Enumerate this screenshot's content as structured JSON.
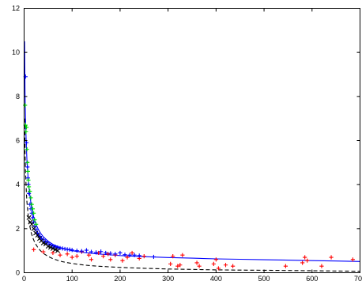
{
  "chart_data": {
    "type": "scatter",
    "title": "",
    "xlabel": "",
    "ylabel": "",
    "xlim": [
      0,
      700
    ],
    "ylim": [
      0,
      12
    ],
    "xticks": [
      0,
      100,
      200,
      300,
      400,
      500,
      600,
      700
    ],
    "yticks": [
      0,
      2,
      4,
      6,
      8,
      10,
      12
    ],
    "xtick_labels": [
      "0",
      "100",
      "200",
      "300",
      "400",
      "500",
      "600",
      "700"
    ],
    "ytick_labels": [
      "0",
      "2",
      "4",
      "6",
      "8",
      "10",
      "12"
    ],
    "grid": false,
    "legend": "none",
    "series": [
      {
        "marker": "+",
        "color": "#ff0000",
        "points": [
          [
            20,
            1.05
          ],
          [
            40,
            0.95
          ],
          [
            60,
            0.9
          ],
          [
            75,
            0.8
          ],
          [
            90,
            0.85
          ],
          [
            100,
            0.7
          ],
          [
            110,
            0.75
          ],
          [
            120,
            0.95
          ],
          [
            135,
            0.8
          ],
          [
            140,
            0.6
          ],
          [
            155,
            0.9
          ],
          [
            165,
            0.75
          ],
          [
            175,
            0.85
          ],
          [
            180,
            0.6
          ],
          [
            190,
            0.8
          ],
          [
            205,
            0.55
          ],
          [
            215,
            0.7
          ],
          [
            225,
            0.9
          ],
          [
            240,
            0.65
          ],
          [
            250,
            0.75
          ],
          [
            305,
            0.4
          ],
          [
            310,
            0.75
          ],
          [
            320,
            0.3
          ],
          [
            325,
            0.35
          ],
          [
            330,
            0.8
          ],
          [
            360,
            0.45
          ],
          [
            365,
            0.3
          ],
          [
            395,
            0.4
          ],
          [
            400,
            0.6
          ],
          [
            405,
            0.2
          ],
          [
            420,
            0.35
          ],
          [
            435,
            0.3
          ],
          [
            545,
            0.3
          ],
          [
            580,
            0.45
          ],
          [
            585,
            0.7
          ],
          [
            590,
            0.55
          ],
          [
            620,
            0.3
          ],
          [
            640,
            0.7
          ],
          [
            685,
            0.6
          ]
        ]
      },
      {
        "marker": "+",
        "color": "#0000ff",
        "points": [
          [
            3,
            8.9
          ],
          [
            5,
            5.9
          ],
          [
            6,
            5.0
          ],
          [
            7,
            4.8
          ],
          [
            8,
            4.3
          ],
          [
            9,
            4.0
          ],
          [
            10,
            3.6
          ],
          [
            12,
            3.1
          ],
          [
            14,
            2.9
          ],
          [
            16,
            2.7
          ],
          [
            18,
            2.5
          ],
          [
            20,
            2.3
          ],
          [
            22,
            2.1
          ],
          [
            25,
            1.95
          ],
          [
            28,
            1.8
          ],
          [
            30,
            1.7
          ],
          [
            33,
            1.65
          ],
          [
            36,
            1.55
          ],
          [
            40,
            1.5
          ],
          [
            44,
            1.42
          ],
          [
            48,
            1.38
          ],
          [
            52,
            1.3
          ],
          [
            56,
            1.25
          ],
          [
            60,
            1.22
          ],
          [
            65,
            1.18
          ],
          [
            70,
            1.15
          ],
          [
            75,
            1.12
          ],
          [
            80,
            1.1
          ],
          [
            85,
            1.08
          ],
          [
            90,
            1.06
          ],
          [
            95,
            1.05
          ],
          [
            100,
            1.03
          ],
          [
            110,
            1.0
          ],
          [
            120,
            0.98
          ],
          [
            130,
            1.02
          ],
          [
            140,
            0.95
          ],
          [
            150,
            0.92
          ],
          [
            160,
            0.96
          ],
          [
            170,
            0.9
          ],
          [
            180,
            0.88
          ],
          [
            190,
            0.85
          ],
          [
            200,
            0.9
          ],
          [
            210,
            0.82
          ],
          [
            220,
            0.8
          ],
          [
            230,
            0.8
          ],
          [
            240,
            0.78
          ],
          [
            270,
            0.72
          ]
        ]
      },
      {
        "marker": "+",
        "color": "#00dd00",
        "points": [
          [
            2,
            7.6
          ],
          [
            3,
            6.7
          ],
          [
            4,
            6.4
          ],
          [
            5,
            6.6
          ],
          [
            6,
            5.6
          ],
          [
            7,
            5.0
          ],
          [
            8,
            4.6
          ],
          [
            9,
            4.2
          ],
          [
            10,
            3.9
          ],
          [
            12,
            3.7
          ],
          [
            14,
            3.4
          ],
          [
            16,
            3.1
          ],
          [
            18,
            2.9
          ],
          [
            20,
            2.7
          ],
          [
            22,
            2.4
          ],
          [
            25,
            2.2
          ]
        ]
      },
      {
        "marker": "x",
        "color": "#000000",
        "points": [
          [
            10,
            2.5
          ],
          [
            13,
            2.3
          ],
          [
            16,
            2.2
          ],
          [
            20,
            2.0
          ],
          [
            24,
            1.8
          ],
          [
            28,
            1.7
          ],
          [
            32,
            1.55
          ],
          [
            36,
            1.45
          ],
          [
            40,
            1.35
          ],
          [
            45,
            1.3
          ],
          [
            50,
            1.2
          ],
          [
            55,
            1.15
          ],
          [
            60,
            1.1
          ],
          [
            65,
            1.05
          ],
          [
            70,
            1.0
          ]
        ]
      }
    ],
    "lines": [
      {
        "style": "solid",
        "color": "#0000ff",
        "points": [
          [
            1,
            10.5
          ],
          [
            2,
            8.2
          ],
          [
            3,
            7.0
          ],
          [
            4,
            6.2
          ],
          [
            5,
            5.6
          ],
          [
            6,
            5.1
          ],
          [
            8,
            4.4
          ],
          [
            10,
            3.9
          ],
          [
            12,
            3.5
          ],
          [
            15,
            3.05
          ],
          [
            18,
            2.7
          ],
          [
            21,
            2.45
          ],
          [
            25,
            2.18
          ],
          [
            30,
            1.95
          ],
          [
            35,
            1.77
          ],
          [
            40,
            1.63
          ],
          [
            50,
            1.43
          ],
          [
            60,
            1.29
          ],
          [
            70,
            1.19
          ],
          [
            80,
            1.11
          ],
          [
            100,
            1.0
          ],
          [
            125,
            0.92
          ],
          [
            150,
            0.86
          ],
          [
            200,
            0.78
          ],
          [
            250,
            0.73
          ],
          [
            300,
            0.69
          ],
          [
            350,
            0.66
          ],
          [
            400,
            0.63
          ],
          [
            450,
            0.61
          ],
          [
            500,
            0.59
          ],
          [
            550,
            0.57
          ],
          [
            600,
            0.55
          ],
          [
            650,
            0.53
          ],
          [
            700,
            0.51
          ]
        ]
      },
      {
        "style": "dashed",
        "color": "#000000",
        "points": [
          [
            1,
            7.0
          ],
          [
            2,
            5.5
          ],
          [
            3,
            4.6
          ],
          [
            4,
            4.0
          ],
          [
            5,
            3.55
          ],
          [
            6,
            3.2
          ],
          [
            8,
            2.7
          ],
          [
            10,
            2.35
          ],
          [
            12,
            2.1
          ],
          [
            15,
            1.8
          ],
          [
            18,
            1.6
          ],
          [
            21,
            1.43
          ],
          [
            25,
            1.27
          ],
          [
            30,
            1.1
          ],
          [
            35,
            0.98
          ],
          [
            40,
            0.88
          ],
          [
            50,
            0.74
          ],
          [
            60,
            0.64
          ],
          [
            70,
            0.56
          ],
          [
            80,
            0.5
          ],
          [
            100,
            0.42
          ],
          [
            125,
            0.35
          ],
          [
            150,
            0.3
          ],
          [
            200,
            0.24
          ],
          [
            250,
            0.2
          ],
          [
            300,
            0.17
          ],
          [
            350,
            0.15
          ],
          [
            400,
            0.13
          ],
          [
            450,
            0.12
          ],
          [
            500,
            0.11
          ],
          [
            550,
            0.1
          ],
          [
            600,
            0.09
          ],
          [
            650,
            0.08
          ],
          [
            700,
            0.07
          ]
        ]
      }
    ]
  }
}
